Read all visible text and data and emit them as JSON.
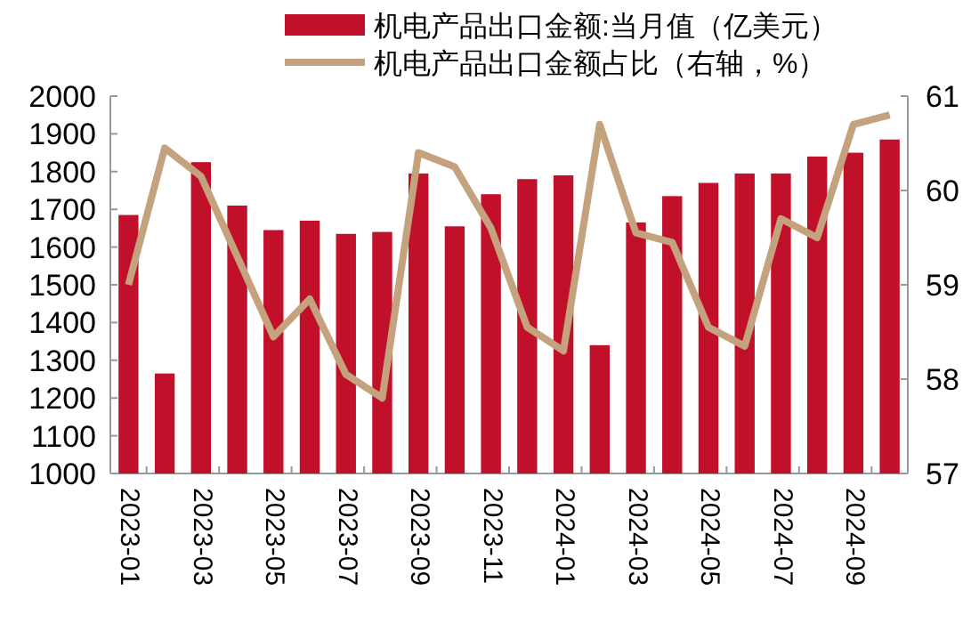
{
  "chart_data": {
    "type": "bar",
    "categories": [
      "2023-01",
      null,
      "2023-03",
      null,
      "2023-05",
      null,
      "2023-07",
      null,
      "2023-09",
      null,
      "2023-11",
      null,
      "2024-01",
      null,
      "2024-03",
      null,
      "2024-05",
      null,
      "2024-07",
      null,
      "2024-09",
      null
    ],
    "series": [
      {
        "name": "机电产品出口金额:当月值（亿美元）",
        "color": "#c0102a",
        "values": [
          1685,
          1265,
          1825,
          1710,
          1645,
          1670,
          1635,
          1640,
          1795,
          1655,
          1740,
          1780,
          1790,
          1340,
          1665,
          1735,
          1770,
          1795,
          1795,
          1840,
          1850,
          1885
        ]
      },
      {
        "name": "机电产品出口金额占比（右轴，%）",
        "type": "line",
        "axis": "y2",
        "color": "#c4a27e",
        "values": [
          59.0,
          60.45,
          60.15,
          59.3,
          58.45,
          58.85,
          58.05,
          57.8,
          60.4,
          60.25,
          59.6,
          58.55,
          58.3,
          60.7,
          59.55,
          59.45,
          58.55,
          58.35,
          59.7,
          59.5,
          60.7,
          60.8
        ]
      }
    ],
    "ylim": [
      1000,
      2000
    ],
    "yticks": [
      1000,
      1100,
      1200,
      1300,
      1400,
      1500,
      1600,
      1700,
      1800,
      1900,
      2000
    ],
    "y2lim": [
      57,
      61
    ],
    "y2ticks": [
      57,
      58,
      59,
      60,
      61
    ],
    "legend": "top",
    "grid": false
  }
}
